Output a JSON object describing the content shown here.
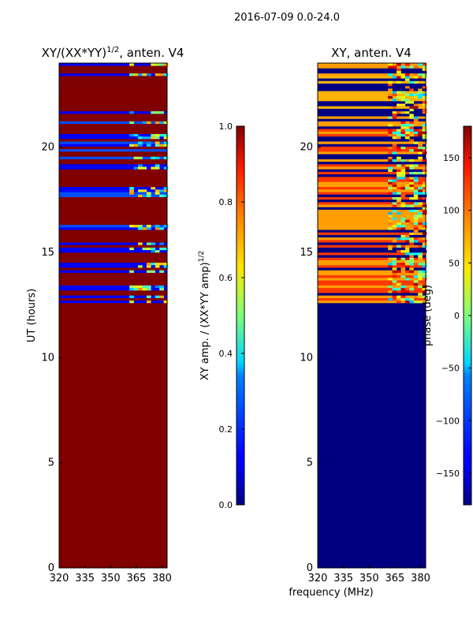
{
  "figure_title": "2016-07-09 0.0-24.0",
  "xlabel_shared": "frequency (MHz)",
  "chart_data": [
    {
      "type": "heatmap",
      "title_main": "XY/(XX*YY)",
      "title_sup": "1/2",
      "title_tail": ", anten. V4",
      "ylabel": "UT (hours)",
      "xlim": [
        320,
        383
      ],
      "ylim": [
        0,
        24
      ],
      "xticks": [
        320,
        335,
        350,
        365,
        380
      ],
      "yticks": [
        0,
        5,
        10,
        15,
        20
      ],
      "colorscale": "jet",
      "clim": [
        0,
        1
      ],
      "colorbar": {
        "label_main": "XY amp. / (XX*YY amp)",
        "label_sup": "1/2",
        "ticks": [
          "0.0",
          "0.2",
          "0.4",
          "0.6",
          "0.8",
          "1.0"
        ],
        "tick_values": [
          0,
          0.2,
          0.4,
          0.6,
          0.8,
          1.0
        ]
      },
      "regions": [
        {
          "t_start": 0,
          "t_end": 12.6,
          "value": 1.0
        },
        {
          "t_start": 12.6,
          "t_end": 23.5,
          "value": "mixed: rows alternate between ~1.0 and ~0.1; 360-383 MHz band 0.2-0.7"
        },
        {
          "t_start": 23.5,
          "t_end": 24.0,
          "value": "mixed"
        }
      ]
    },
    {
      "type": "heatmap",
      "title": "XY, anten. V4",
      "ylabel": "",
      "xlim": [
        320,
        383
      ],
      "ylim": [
        0,
        24
      ],
      "xticks": [
        320,
        335,
        350,
        365,
        380
      ],
      "yticks": [
        0,
        5,
        10,
        15,
        20
      ],
      "colorscale": "jet",
      "clim": [
        -180,
        180
      ],
      "colorbar": {
        "label": "phase (deg)",
        "ticks": [
          "−150",
          "−100",
          "−50",
          "0",
          "50",
          "100",
          "150"
        ],
        "tick_values": [
          -150,
          -100,
          -50,
          0,
          50,
          100,
          150
        ]
      },
      "regions": [
        {
          "t_start": 0,
          "t_end": 12.6,
          "value": -180
        },
        {
          "t_start": 12.6,
          "t_end": 24.0,
          "value": "mixed: rows of ~60-130 deg separated by -180 deg rows; 360-383 MHz band noisy"
        }
      ]
    }
  ]
}
